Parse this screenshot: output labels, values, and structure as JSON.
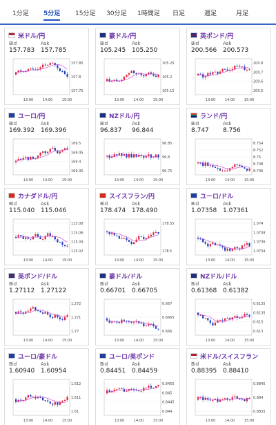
{
  "tabs": [
    {
      "label": "1分足",
      "active": false
    },
    {
      "label": "5分足",
      "active": true
    },
    {
      "label": "15分足",
      "active": false
    },
    {
      "label": "30分足",
      "active": false
    },
    {
      "label": "1時間足",
      "active": false
    },
    {
      "label": "日足",
      "active": false
    },
    {
      "label": "週足",
      "active": false
    },
    {
      "label": "月足",
      "active": false
    }
  ],
  "labels": {
    "bid": "Bid",
    "ask": "Ask"
  },
  "colors": {
    "accent": "#1f4fbf",
    "title": "#6b35a8",
    "up": "#e0203a",
    "down": "#1f3fbf",
    "ma": "#d04fd0"
  },
  "cards": [
    {
      "title": "米ドル/円",
      "flag": "us-flag",
      "bid": "157.783",
      "ask": "157.785",
      "y_ticks": [
        "157.85",
        "157.8",
        "157.75"
      ],
      "x_ticks": [
        "13:00",
        "14:00",
        "15:00"
      ]
    },
    {
      "title": "豪ドル/円",
      "flag": "au-flag",
      "bid": "105.245",
      "ask": "105.250",
      "y_ticks": [
        "105.25",
        "105.2",
        "105.15"
      ],
      "x_ticks": [
        "13:00",
        "14:00",
        "15:00"
      ]
    },
    {
      "title": "英ポンド/円",
      "flag": "gb-flag",
      "bid": "200.566",
      "ask": "200.573",
      "y_ticks": [
        "200.8",
        "200.7",
        "200.6",
        "200.5"
      ],
      "x_ticks": [
        "13:00",
        "14:00",
        "15:00"
      ]
    },
    {
      "title": "ユーロ/円",
      "flag": "eu-flag",
      "bid": "169.392",
      "ask": "169.396",
      "y_ticks": [
        "169.5",
        "169.45",
        "169.4",
        "169.35"
      ],
      "x_ticks": [
        "13:00",
        "14:00",
        "15:00"
      ]
    },
    {
      "title": "NZドル/円",
      "flag": "nz-flag",
      "bid": "96.837",
      "ask": "96.844",
      "y_ticks": [
        "96.85",
        "96.8",
        "96.75"
      ],
      "x_ticks": [
        "13:00",
        "14:00",
        "15:00"
      ]
    },
    {
      "title": "ランド/円",
      "flag": "za-flag",
      "bid": "8.747",
      "ask": "8.756",
      "y_ticks": [
        "8.754",
        "8.752",
        "8.75",
        "8.748",
        "8.746"
      ],
      "x_ticks": [
        "13:00",
        "14:00",
        "15:00"
      ]
    },
    {
      "title": "カナダドル/円",
      "flag": "ca-flag",
      "bid": "115.040",
      "ask": "115.046",
      "y_ticks": [
        "115.08",
        "115.06",
        "115.04",
        "115.02"
      ],
      "x_ticks": [
        "13:00",
        "14:00",
        "15:00"
      ]
    },
    {
      "title": "スイスフラン/円",
      "flag": "ch-flag",
      "bid": "178.474",
      "ask": "178.490",
      "y_ticks": [
        "178.55",
        "178.5"
      ],
      "x_ticks": [
        "13:00",
        "14:00",
        "15:00"
      ]
    },
    {
      "title": "ユーロ/ドル",
      "flag": "eu-flag",
      "bid": "1.07358",
      "ask": "1.07361",
      "y_ticks": [
        "1.074",
        "1.0738",
        "1.0736",
        "1.0734"
      ],
      "x_ticks": [
        "13:00",
        "14:00",
        "15:00"
      ]
    },
    {
      "title": "英ポンド/ドル",
      "flag": "gb-flag",
      "bid": "1.27112",
      "ask": "1.27122",
      "y_ticks": [
        "1.272",
        "1.271",
        "1.27"
      ],
      "x_ticks": [
        "13:00",
        "14:00",
        "15:00"
      ]
    },
    {
      "title": "豪ドル/ドル",
      "flag": "au-flag",
      "bid": "0.66701",
      "ask": "0.66705",
      "y_ticks": [
        "0.667",
        "0.6665",
        "0.666"
      ],
      "x_ticks": [
        "13:00",
        "14:00",
        "15:00"
      ]
    },
    {
      "title": "NZドル/ドル",
      "flag": "nz-flag",
      "bid": "0.61368",
      "ask": "0.61382",
      "y_ticks": [
        "0.6135",
        "0.6135",
        "0.613",
        "0.613"
      ],
      "x_ticks": [
        "13:00",
        "14:00",
        "15:00"
      ]
    },
    {
      "title": "ユーロ/豪ドル",
      "flag": "eu-flag",
      "bid": "1.60940",
      "ask": "1.60954",
      "y_ticks": [
        "1.612",
        "1.611",
        "1.61"
      ],
      "x_ticks": [
        "13:00",
        "14:00",
        "15:00"
      ]
    },
    {
      "title": "ユーロ/英ポンド",
      "flag": "eu-flag",
      "bid": "0.84451",
      "ask": "0.84459",
      "y_ticks": [
        "0.8455",
        "0.845",
        "0.8445",
        "0.844"
      ],
      "x_ticks": [
        "13:00",
        "14:00",
        "15:00"
      ]
    },
    {
      "title": "米ドル/スイスフラン",
      "flag": "us-flag",
      "bid": "0.88395",
      "ask": "0.88410",
      "y_ticks": [
        "0.8845",
        "0.884",
        "0.8835"
      ],
      "x_ticks": [
        "13:00",
        "14:00",
        "15:00"
      ]
    }
  ]
}
